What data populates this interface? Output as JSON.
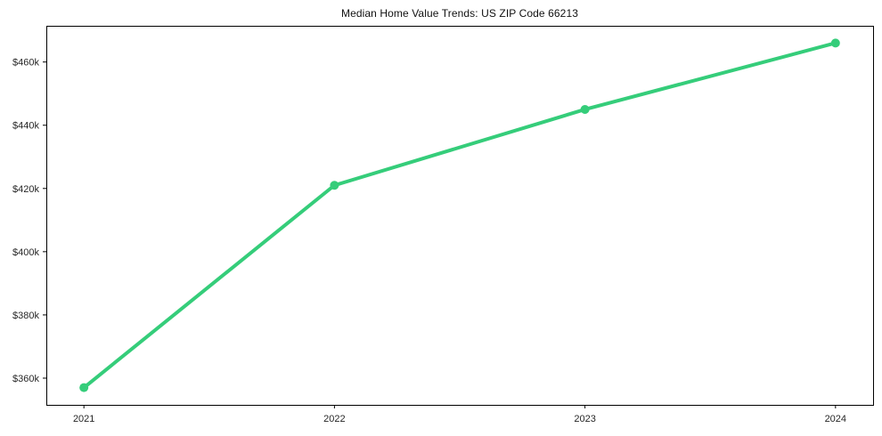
{
  "page": {
    "title": "Median Home Value Trends: US ZIP Code 66213"
  },
  "chart_data": {
    "type": "line",
    "title": "Median Home Value Trends: US ZIP Code 66213",
    "x": [
      2021,
      2022,
      2023,
      2024
    ],
    "series": [
      {
        "name": "Median Home Value",
        "values": [
          357000,
          421000,
          445000,
          466000
        ]
      }
    ],
    "x_tick_labels": [
      "2021",
      "2022",
      "2023",
      "2024"
    ],
    "y_tick_values": [
      360000,
      380000,
      400000,
      420000,
      440000,
      460000
    ],
    "y_tick_labels": [
      "$360k",
      "$380k",
      "$400k",
      "$420k",
      "$440k",
      "$460k"
    ],
    "xlim": [
      2020.85,
      2024.15
    ],
    "ylim": [
      351550,
      471450
    ],
    "xlabel": "",
    "ylabel": "",
    "grid": false,
    "legend_position": "none",
    "line_color": "#35cd7a",
    "marker": "circle",
    "marker_radius": 5,
    "line_width": 4,
    "axis_color": "#000000",
    "tick_label_color": "#262626",
    "background": "#ffffff"
  }
}
